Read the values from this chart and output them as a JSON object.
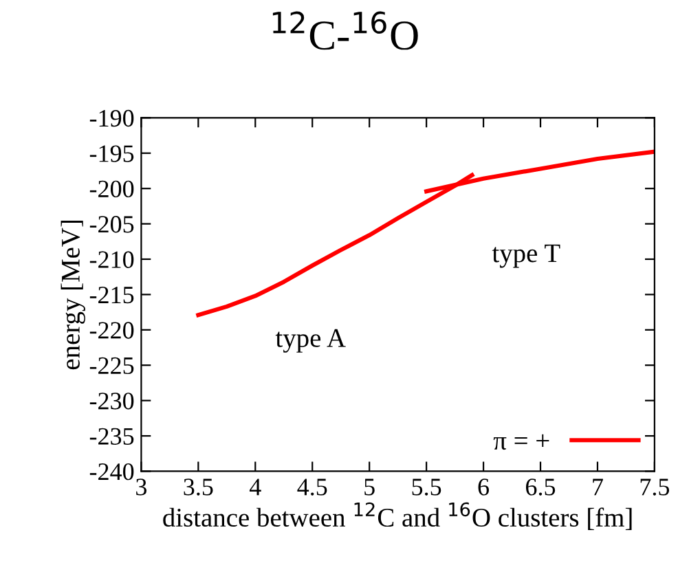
{
  "chart_data": {
    "type": "line",
    "title": "$^{12}$C-$^{16}$O",
    "xlabel": "distance between $^{12}$C and $^{16}$O clusters [fm]",
    "ylabel": "energy [MeV]",
    "series": [
      {
        "name": "π = +",
        "color": "#ff0000",
        "x": [
          3.5,
          3.75,
          4.0,
          4.25,
          4.5,
          4.75,
          5.0,
          5.25,
          5.5,
          5.75,
          5.9
        ],
        "values": [
          -217.9,
          -216.7,
          -215.2,
          -213.2,
          -210.9,
          -208.7,
          -206.6,
          -204.2,
          -201.9,
          -199.6,
          -198.1
        ]
      },
      {
        "color": "#ff0000",
        "x": [
          5.5,
          6.0,
          6.5,
          7.0,
          7.5
        ],
        "values": [
          -200.4,
          -198.6,
          -197.2,
          -195.8,
          -194.8
        ]
      }
    ],
    "annotations": [
      "type A",
      "type T"
    ],
    "xlim": [
      3,
      7.5
    ],
    "xticks": [
      3,
      3.5,
      4,
      4.5,
      5,
      5.5,
      6,
      6.5,
      7,
      7.5
    ],
    "ylim": [
      -240,
      -190
    ],
    "yticks": [
      -240,
      -235,
      -230,
      -225,
      -220,
      -215,
      -210,
      -205,
      -200,
      -195,
      -190
    ],
    "legend": "bottom right",
    "grid": false
  }
}
